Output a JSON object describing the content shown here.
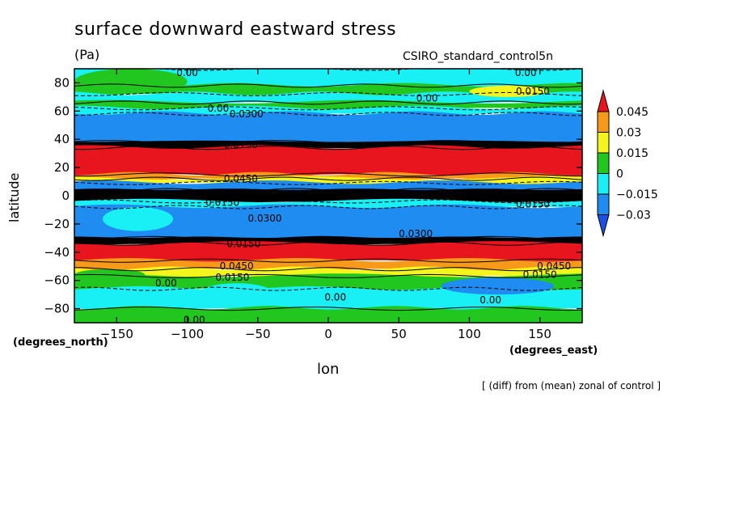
{
  "chart_data": {
    "type": "heatmap",
    "title": "surface downward eastward stress",
    "units": "(Pa)",
    "dataset": "CSIRO_standard_control5n",
    "xlabel": "lon",
    "ylabel": "latitude",
    "x_unit": "(degrees_east)",
    "y_unit": "(degrees_north)",
    "footnote": "[ (diff) from (mean) zonal of control ]",
    "xlim": [
      -180,
      180
    ],
    "ylim": [
      -90,
      90
    ],
    "x_ticks": [
      -150,
      -100,
      -50,
      0,
      50,
      100,
      150
    ],
    "y_ticks": [
      80,
      60,
      40,
      20,
      0,
      -20,
      -40,
      -60,
      -80
    ],
    "legend": {
      "position": "right",
      "levels": [
        "0.045",
        "0.03",
        "0.015",
        "0",
        "−0.015",
        "−0.03"
      ],
      "colors": [
        "#e8141e",
        "#f79a1a",
        "#f5f51e",
        "#21c71e",
        "#19f0f5",
        "#1e8cf0",
        "#1a50e6"
      ]
    },
    "bands": [
      {
        "lat": [
          78,
          90
        ],
        "class": "cyan"
      },
      {
        "lat": [
          72,
          78
        ],
        "class": "green"
      },
      {
        "lat": [
          66,
          72
        ],
        "class": "cyan"
      },
      {
        "lat": [
          62,
          66
        ],
        "class": "green"
      },
      {
        "lat": [
          58,
          62
        ],
        "class": "cyan"
      },
      {
        "lat": [
          38,
          58
        ],
        "class": "blue"
      },
      {
        "lat": [
          34,
          38
        ],
        "class": "black"
      },
      {
        "lat": [
          15,
          34
        ],
        "class": "red"
      },
      {
        "lat": [
          12,
          15
        ],
        "class": "orange"
      },
      {
        "lat": [
          9,
          12
        ],
        "class": "yellow"
      },
      {
        "lat": [
          4,
          9
        ],
        "class": "blue"
      },
      {
        "lat": [
          -4,
          4
        ],
        "class": "black"
      },
      {
        "lat": [
          -8,
          -4
        ],
        "class": "cyan"
      },
      {
        "lat": [
          -30,
          -8
        ],
        "class": "blue"
      },
      {
        "lat": [
          -34,
          -30
        ],
        "class": "black"
      },
      {
        "lat": [
          -46,
          -34
        ],
        "class": "red"
      },
      {
        "lat": [
          -52,
          -46
        ],
        "class": "orange"
      },
      {
        "lat": [
          -57,
          -52
        ],
        "class": "yellow"
      },
      {
        "lat": [
          -66,
          -57
        ],
        "class": "green"
      },
      {
        "lat": [
          -80,
          -66
        ],
        "class": "cyan"
      },
      {
        "lat": [
          -90,
          -80
        ],
        "class": "green"
      }
    ],
    "patches": [
      {
        "lon": [
          -180,
          -100
        ],
        "lat": [
          72,
          90
        ],
        "class": "green"
      },
      {
        "lon": [
          100,
          155
        ],
        "lat": [
          70,
          78
        ],
        "class": "yellow"
      },
      {
        "lon": [
          -160,
          -110
        ],
        "lat": [
          -25,
          -8
        ],
        "class": "cyan"
      },
      {
        "lon": [
          -90,
          -40
        ],
        "lat": [
          -75,
          -62
        ],
        "class": "cyan"
      },
      {
        "lon": [
          80,
          160
        ],
        "lat": [
          -70,
          -58
        ],
        "class": "blue"
      },
      {
        "lon": [
          -180,
          -130
        ],
        "lat": [
          -60,
          -52
        ],
        "class": "green"
      }
    ],
    "contour_labels": [
      {
        "lon": -100,
        "lat": 87,
        "text": "0.00"
      },
      {
        "lon": 140,
        "lat": 87,
        "text": "0.00"
      },
      {
        "lon": 145,
        "lat": 74,
        "text": "0.0150"
      },
      {
        "lon": 70,
        "lat": 69,
        "text": "0.00"
      },
      {
        "lon": -78,
        "lat": 62,
        "text": "0.00"
      },
      {
        "lon": -58,
        "lat": 58,
        "text": "0.0300"
      },
      {
        "lon": -62,
        "lat": 36,
        "text": "0.0150"
      },
      {
        "lon": -62,
        "lat": 12,
        "text": "0.0450"
      },
      {
        "lon": -60,
        "lat": 1,
        "text": "0.0150"
      },
      {
        "lon": -75,
        "lat": -5,
        "text": "0.0150"
      },
      {
        "lon": -45,
        "lat": -16,
        "text": "0.0300"
      },
      {
        "lon": 62,
        "lat": -27,
        "text": "0.0300"
      },
      {
        "lon": 145,
        "lat": -6,
        "text": "0.0150"
      },
      {
        "lon": -60,
        "lat": -34,
        "text": "0.0150"
      },
      {
        "lon": -65,
        "lat": -50,
        "text": "0.0450"
      },
      {
        "lon": -68,
        "lat": -58,
        "text": "0.0150"
      },
      {
        "lon": -115,
        "lat": -62,
        "text": "0.00"
      },
      {
        "lon": 160,
        "lat": -50,
        "text": "0.0450"
      },
      {
        "lon": 150,
        "lat": -56,
        "text": "0.0150"
      },
      {
        "lon": 5,
        "lat": -72,
        "text": "0.00"
      },
      {
        "lon": 115,
        "lat": -74,
        "text": "0.00"
      },
      {
        "lon": -95,
        "lat": -88,
        "text": "0.00"
      }
    ]
  }
}
